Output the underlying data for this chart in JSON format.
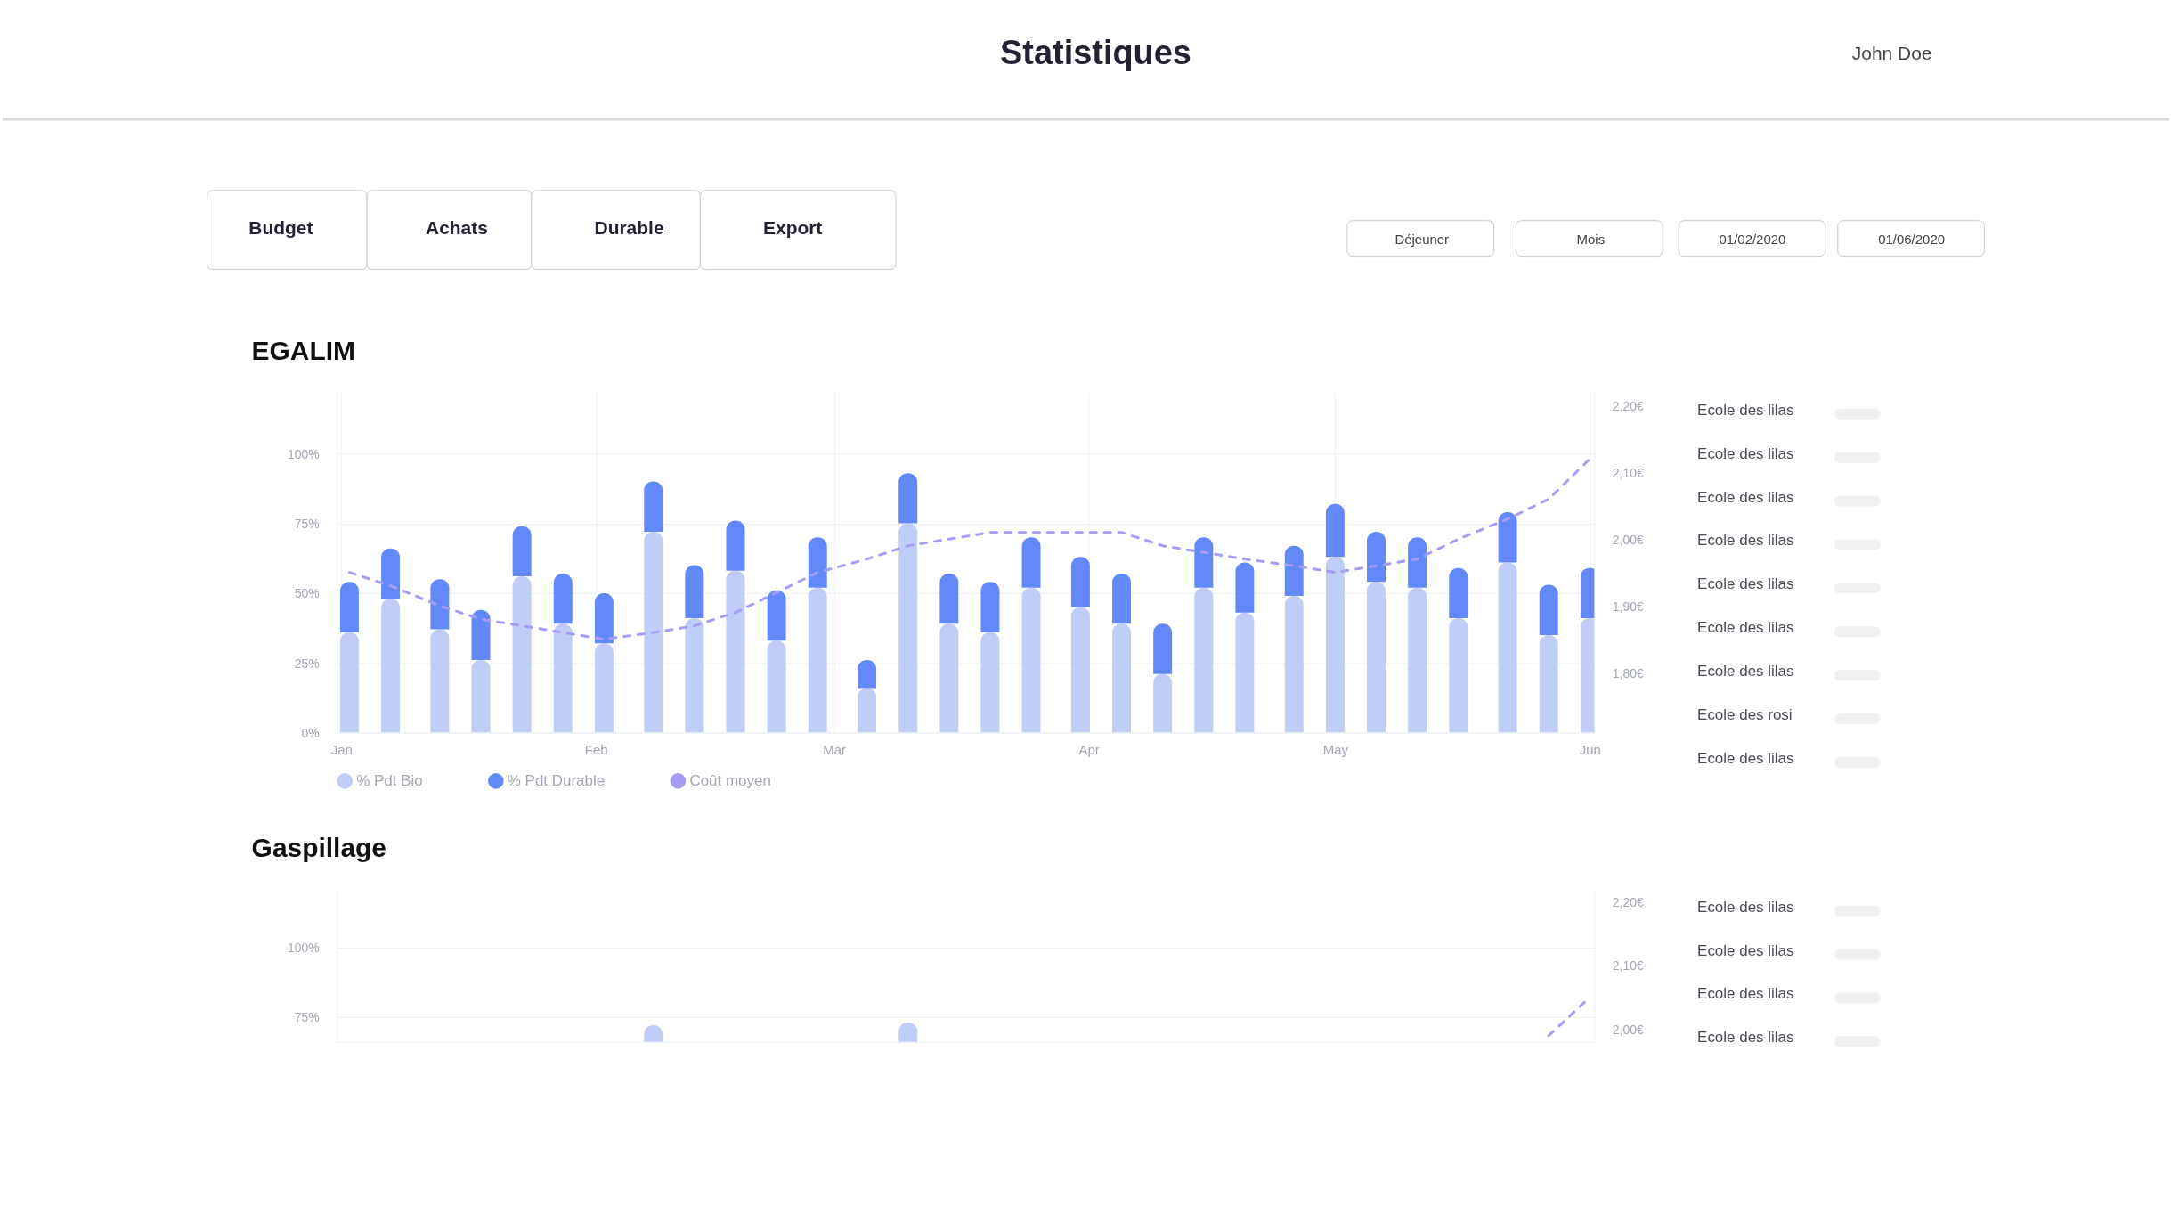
{
  "chart_data": [
    {
      "type": "bar",
      "title": "EGALIM",
      "stacked": true,
      "grid": true,
      "legend": "bottom",
      "x": [
        "2020-01-02",
        "2020-01-07",
        "2020-01-13",
        "2020-01-18",
        "2020-01-23",
        "2020-01-28",
        "2020-02-02",
        "2020-02-08",
        "2020-02-13",
        "2020-02-18",
        "2020-02-23",
        "2020-02-28",
        "2020-03-05",
        "2020-03-10",
        "2020-03-15",
        "2020-03-20",
        "2020-03-25",
        "2020-03-31",
        "2020-04-05",
        "2020-04-10",
        "2020-04-15",
        "2020-04-20",
        "2020-04-26",
        "2020-05-01",
        "2020-05-06",
        "2020-05-11",
        "2020-05-16",
        "2020-05-22",
        "2020-05-27",
        "2020-06-01"
      ],
      "series": [
        {
          "name": "% Pdt Bio",
          "color": "#c0cdf6",
          "values": [
            36,
            48,
            37,
            26,
            56,
            39,
            32,
            72,
            41,
            58,
            33,
            52,
            16,
            75,
            39,
            36,
            52,
            45,
            39,
            21,
            52,
            43,
            49,
            63,
            54,
            52,
            41,
            61,
            35,
            41
          ]
        },
        {
          "name": "% Pdt Durable",
          "color": "#6389f8",
          "values": [
            18,
            18,
            18,
            18,
            18,
            18,
            18,
            18,
            19,
            18,
            18,
            18,
            10,
            18,
            18,
            18,
            18,
            18,
            18,
            18,
            18,
            18,
            18,
            19,
            18,
            18,
            18,
            18,
            18,
            18
          ]
        },
        {
          "name": "Coût moyen",
          "type": "line",
          "axis": "y2",
          "line_style": "dashed",
          "color": "#a59cf5",
          "values": [
            1.95,
            1.93,
            1.9,
            1.88,
            1.87,
            1.86,
            1.85,
            1.86,
            1.87,
            1.89,
            1.92,
            1.95,
            1.97,
            1.99,
            2.0,
            2.01,
            2.01,
            2.01,
            2.01,
            1.99,
            1.98,
            1.97,
            1.96,
            1.95,
            1.96,
            1.97,
            2.0,
            2.03,
            2.06,
            2.12
          ]
        }
      ],
      "xlim": [
        "2020-01-01",
        "2020-06-01"
      ],
      "xticks": [
        {
          "value": "2020-01-01",
          "label": "Jan"
        },
        {
          "value": "2020-02-01",
          "label": "Feb"
        },
        {
          "value": "2020-03-01",
          "label": "Mar"
        },
        {
          "value": "2020-04-01",
          "label": "Apr"
        },
        {
          "value": "2020-05-01",
          "label": "May"
        },
        {
          "value": "2020-06-01",
          "label": "Jun"
        }
      ],
      "ylim": [
        0,
        122
      ],
      "yticks": [
        {
          "value": 0,
          "label": "0%"
        },
        {
          "value": 25,
          "label": "25%"
        },
        {
          "value": 50,
          "label": "50%"
        },
        {
          "value": 75,
          "label": "75%"
        },
        {
          "value": 100,
          "label": "100%"
        }
      ],
      "y2lim": [
        1.71,
        2.22
      ],
      "y2ticks": [
        {
          "value": 1.8,
          "label": "1,80€"
        },
        {
          "value": 1.9,
          "label": "1,90€"
        },
        {
          "value": 2.0,
          "label": "2,00€"
        },
        {
          "value": 2.1,
          "label": "2,10€"
        },
        {
          "value": 2.2,
          "label": "2,20€"
        }
      ],
      "annotations": [
        "Statistiques",
        "John Doe",
        "Budget",
        "Achats",
        "Durable",
        "Export",
        "Déjeuner",
        "Mois",
        "01/02/2020",
        "01/06/2020",
        "Ecole des lilas",
        "Ecole des rosi",
        "Ecole des lilas",
        "Ecole des lilas",
        "Ecole des lilas",
        "Ecole des lilas",
        "Ecole des lilas",
        "Ecole des lilas",
        "Ecole des lilas"
      ]
    },
    {
      "type": "bar",
      "title": "Gaspillage",
      "grid": true,
      "series": [
        {
          "color": "#c0cdf6",
          "x": [
            "2020-02-08",
            "2020-03-10"
          ],
          "values": [
            72,
            73
          ]
        },
        {
          "type": "line",
          "axis": "y2",
          "line_style": "dashed",
          "color": "#a59cf5",
          "x": [
            "2020-05-27",
            "2020-06-01"
          ],
          "values": [
            1.99,
            2.05
          ]
        }
      ],
      "xlim": [
        "2020-01-01",
        "2020-06-01"
      ],
      "ylim": [
        66,
        121
      ],
      "yticks": [
        {
          "value": 75,
          "label": "75%"
        },
        {
          "value": 100,
          "label": "100%"
        }
      ],
      "y2lim": [
        1.98,
        2.22
      ],
      "y2ticks": [
        {
          "value": 2.0,
          "label": "2,00€"
        },
        {
          "value": 2.1,
          "label": "2,10€"
        },
        {
          "value": 2.2,
          "label": "2,20€"
        }
      ],
      "annotations": [
        "Ecole des lilas",
        "Ecole des lilas",
        "Ecole des lilas",
        "Ecole des lilas"
      ]
    }
  ]
}
